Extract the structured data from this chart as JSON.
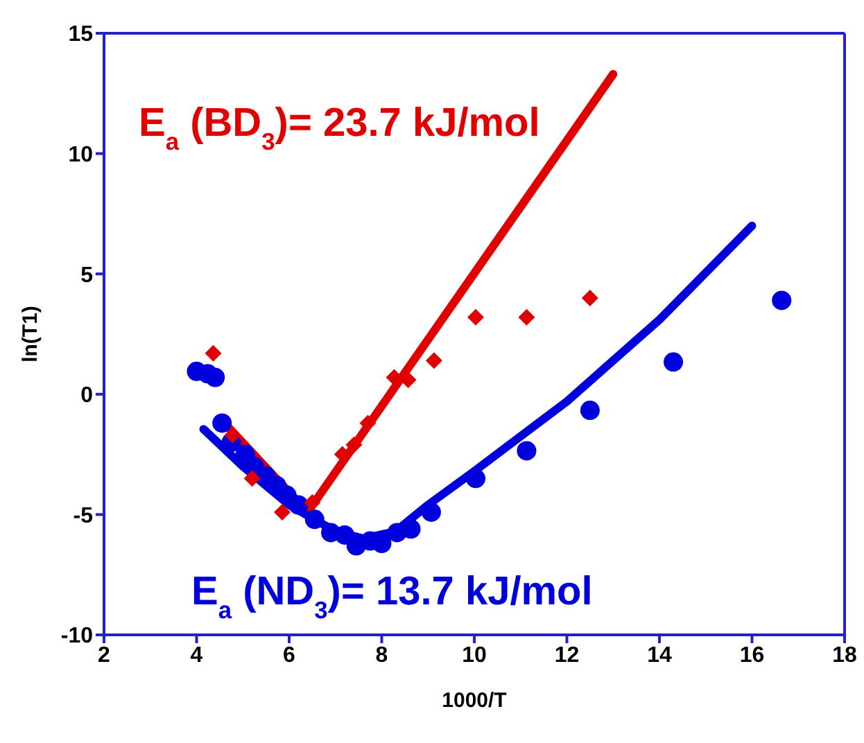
{
  "chart_data": {
    "type": "scatter",
    "xlabel": "1000/T",
    "ylabel": "ln(T1)",
    "xlim": [
      2,
      18
    ],
    "xticks": [
      2,
      4,
      6,
      8,
      10,
      12,
      14,
      16,
      18
    ],
    "ylim": [
      -10,
      15
    ],
    "yticks": [
      -10,
      -5,
      0,
      5,
      10,
      15
    ],
    "annotations": [
      "E$_{a}$ (BD$_{3}$)= 23.7 kJ/mol",
      "E$_{a}$ (ND$_{3}$)= 13.7 kJ/mol"
    ],
    "series": [
      {
        "marker": "diamond",
        "color": "#e00000",
        "x": [
          4.36,
          4.78,
          5.2,
          5.85,
          6.5,
          7.15,
          7.4,
          7.7,
          8.27,
          8.57,
          9.13,
          10.03,
          11.13,
          12.5
        ],
        "values": [
          1.7,
          -1.7,
          -3.5,
          -4.9,
          -4.5,
          -2.5,
          -2.1,
          -1.2,
          0.7,
          0.6,
          1.4,
          3.2,
          3.2,
          4.0
        ]
      },
      {
        "type": "line",
        "marker": "none",
        "color": "#e00000",
        "x": [
          4.6,
          6.4,
          13.0
        ],
        "values": [
          -1.2,
          -4.9,
          13.3
        ]
      },
      {
        "marker": "circle",
        "color": "#0000dd",
        "x": [
          4.0,
          4.24,
          4.4,
          4.55,
          4.75,
          5.05,
          5.25,
          5.5,
          5.73,
          5.95,
          6.2,
          6.55,
          6.9,
          7.2,
          7.45,
          7.75,
          8.0,
          8.33,
          8.63,
          9.07,
          10.03,
          11.13,
          12.5,
          14.3,
          16.64
        ],
        "values": [
          0.95,
          0.85,
          0.7,
          -1.2,
          -2.0,
          -2.5,
          -3.0,
          -3.4,
          -3.8,
          -4.2,
          -4.6,
          -5.2,
          -5.75,
          -5.85,
          -6.3,
          -6.1,
          -6.2,
          -5.75,
          -5.6,
          -4.9,
          -3.5,
          -2.35,
          -0.67,
          1.34,
          3.9
        ]
      },
      {
        "type": "line",
        "marker": "none",
        "color": "#0000dd",
        "x": [
          4.15,
          5.0,
          6.0,
          7.0,
          7.6,
          8.3,
          9.0,
          10.0,
          12.0,
          14.0,
          16.0
        ],
        "values": [
          -1.45,
          -3.0,
          -4.6,
          -5.7,
          -6.0,
          -5.7,
          -4.6,
          -3.2,
          -0.3,
          3.1,
          7.0
        ]
      }
    ]
  }
}
